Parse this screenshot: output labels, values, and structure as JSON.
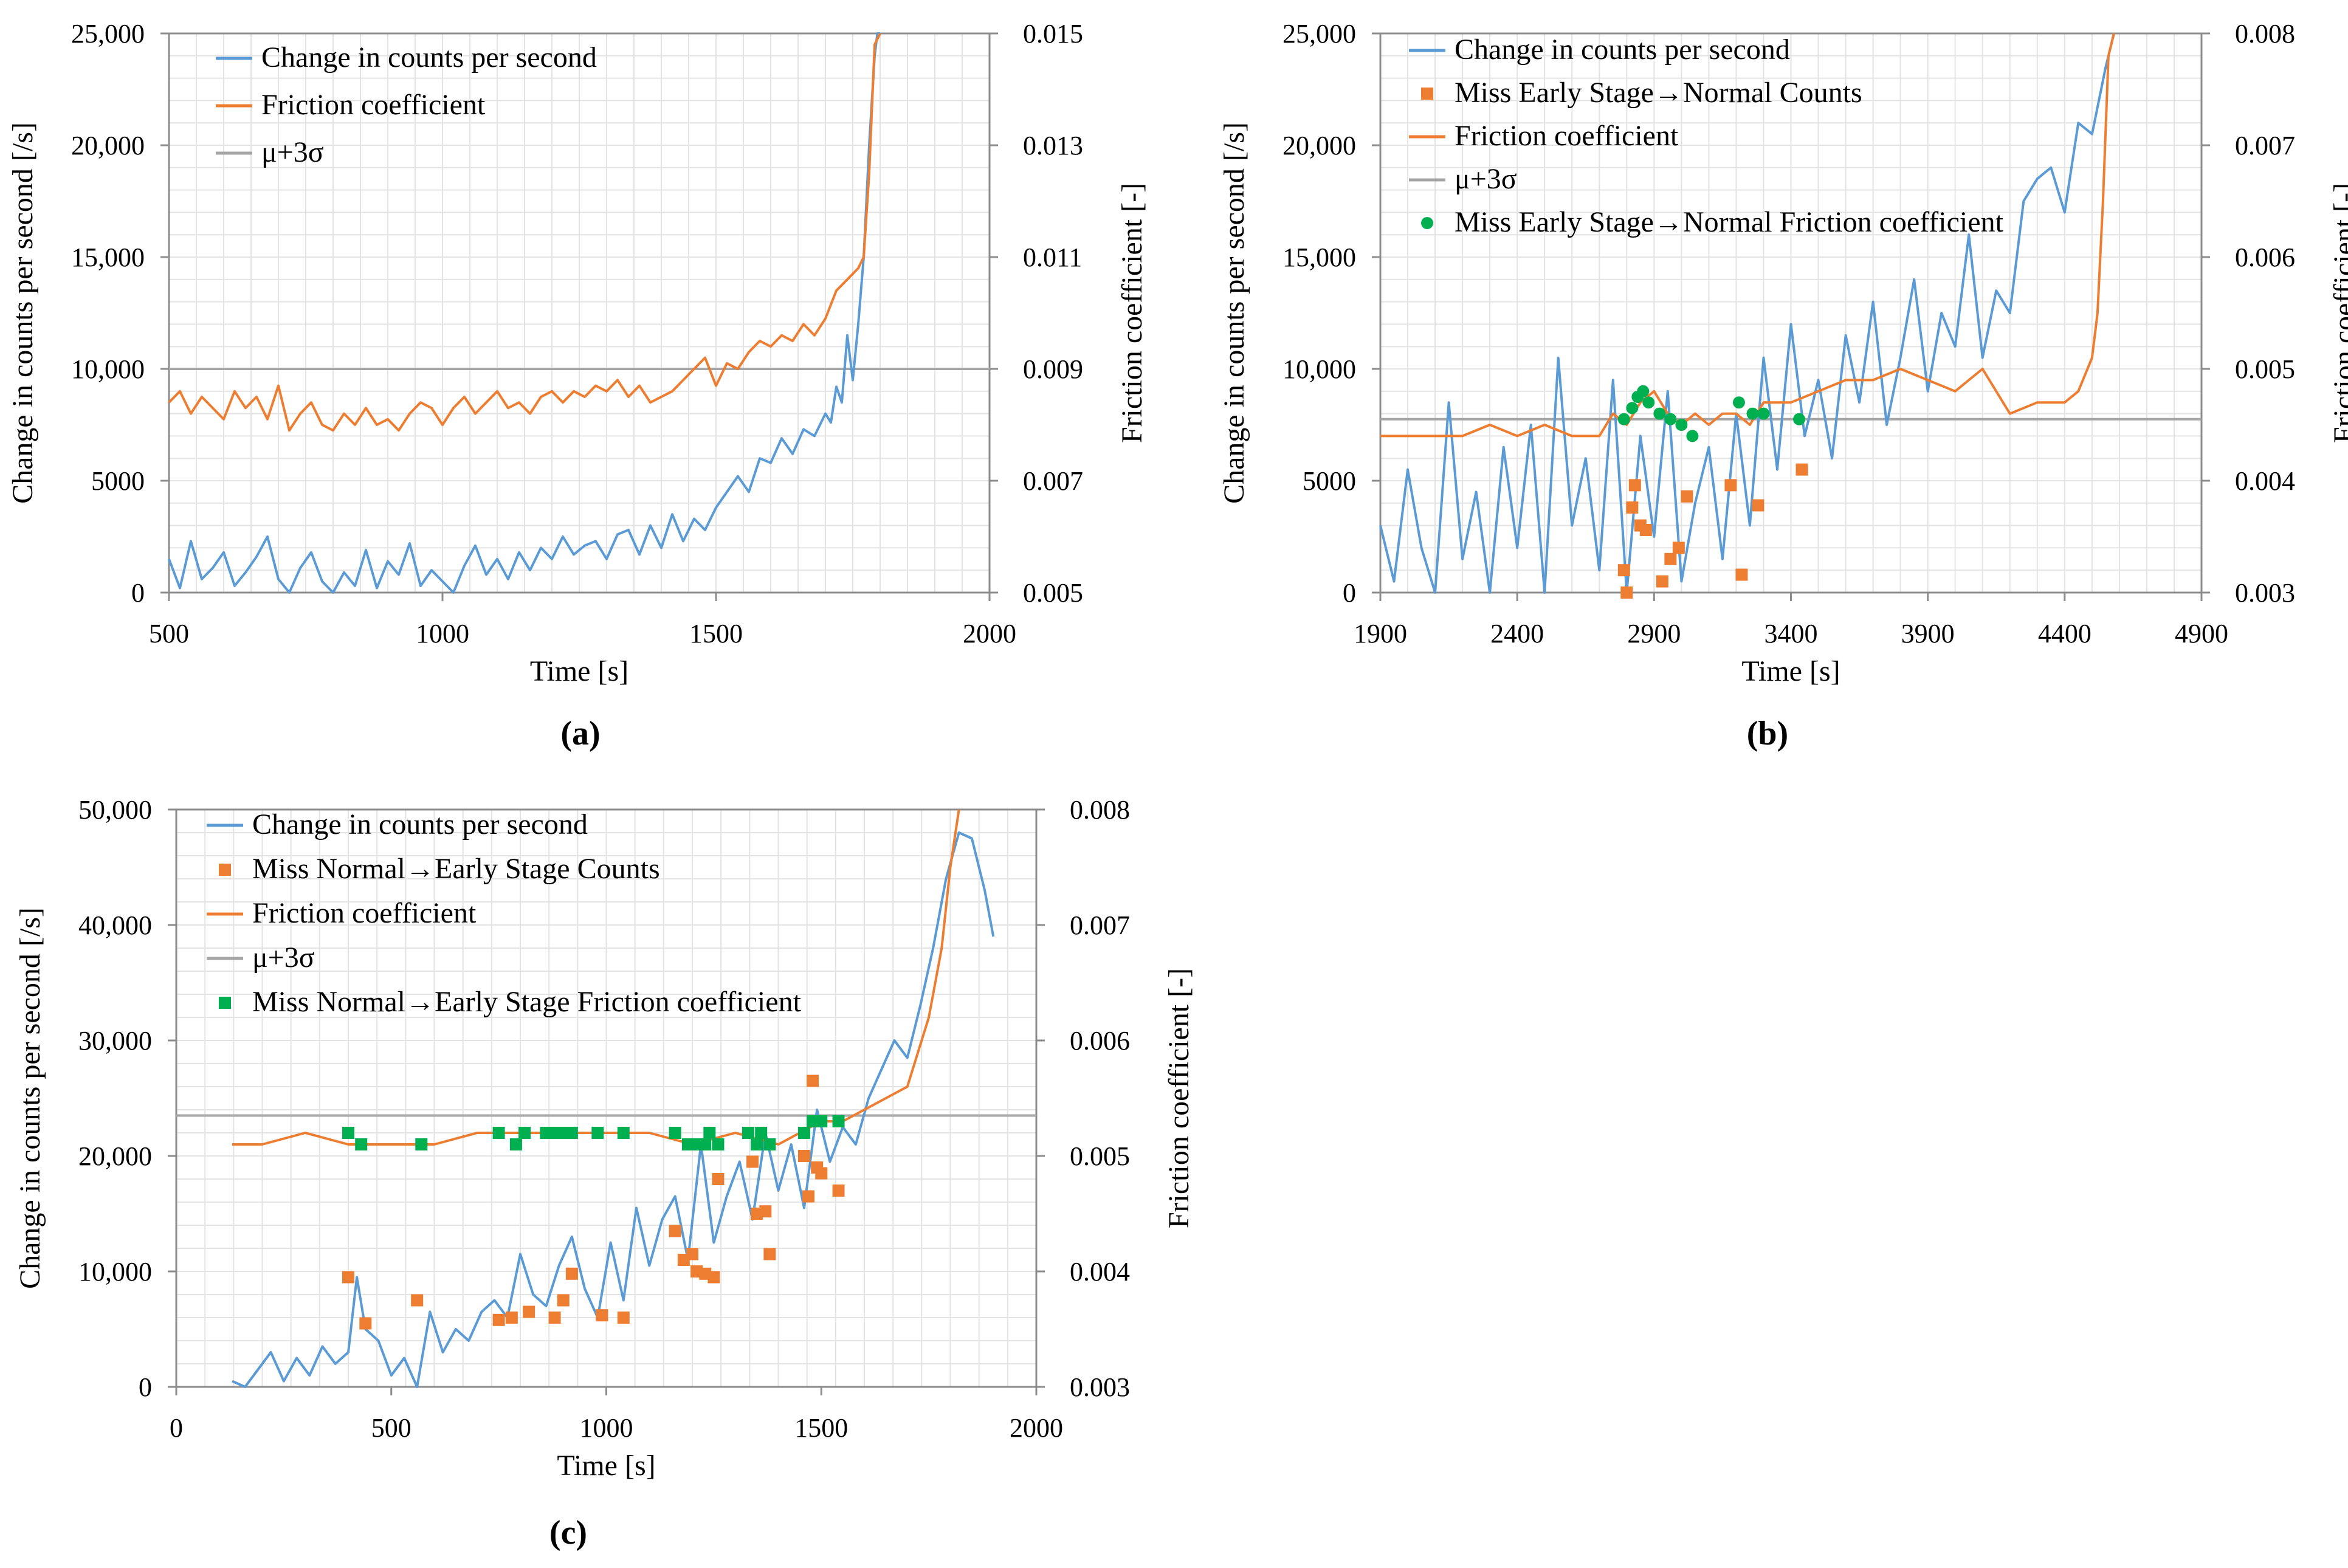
{
  "figure": {
    "panel_labels": [
      "(a)",
      "(b)",
      "(c)"
    ]
  },
  "chart_data": [
    {
      "panel": "(a)",
      "type": "line",
      "xlabel": "Time [s]",
      "ylabel": "Change in counts per second  [/s]",
      "y2label": "Friction coefficient  [-]",
      "xlim": [
        500,
        2000
      ],
      "ylim": [
        0,
        25000
      ],
      "y2lim": [
        0.005,
        0.015
      ],
      "x_ticks": [
        "500",
        "1000",
        "1500",
        "2000"
      ],
      "y_ticks": [
        "0",
        "5000",
        "10,000",
        "15,000",
        "20,000",
        "25,000"
      ],
      "y2_ticks": [
        "0.005",
        "0.007",
        "0.009",
        "0.011",
        "0.013",
        "0.015"
      ],
      "legend": [
        "Change in counts per second",
        "Friction coefficient",
        "μ+3σ"
      ],
      "threshold": 0.009,
      "series": [
        {
          "name": "Change in counts per second",
          "axis": "left",
          "color": "#5b9bd5",
          "x": [
            500,
            520,
            540,
            560,
            580,
            600,
            620,
            640,
            660,
            680,
            700,
            720,
            740,
            760,
            780,
            800,
            820,
            840,
            860,
            880,
            900,
            920,
            940,
            960,
            980,
            1000,
            1020,
            1040,
            1060,
            1080,
            1100,
            1120,
            1140,
            1160,
            1180,
            1200,
            1220,
            1240,
            1260,
            1280,
            1300,
            1320,
            1340,
            1360,
            1380,
            1400,
            1420,
            1440,
            1460,
            1480,
            1500,
            1520,
            1540,
            1560,
            1580,
            1600,
            1620,
            1640,
            1660,
            1680,
            1700,
            1710,
            1720,
            1730,
            1740,
            1750,
            1760,
            1770,
            1780,
            1785,
            1790,
            1795,
            1800
          ],
          "y": [
            1500,
            200,
            2300,
            600,
            1100,
            1800,
            300,
            900,
            1600,
            2500,
            600,
            0,
            1100,
            1800,
            500,
            0,
            900,
            300,
            1900,
            200,
            1400,
            800,
            2200,
            300,
            1000,
            500,
            0,
            1200,
            2100,
            800,
            1500,
            600,
            1800,
            1000,
            2000,
            1500,
            2500,
            1700,
            2100,
            2300,
            1500,
            2600,
            2800,
            1700,
            3000,
            2000,
            3500,
            2300,
            3300,
            2800,
            3800,
            4500,
            5200,
            4500,
            6000,
            5800,
            6900,
            6200,
            7300,
            7000,
            8000,
            7600,
            9200,
            8500,
            11500,
            9500,
            12000,
            15000,
            20000,
            22000,
            24000,
            25000,
            25000
          ]
        },
        {
          "name": "Friction coefficient",
          "axis": "right",
          "color": "#ed7d31",
          "x": [
            500,
            520,
            540,
            560,
            580,
            600,
            620,
            640,
            660,
            680,
            700,
            720,
            740,
            760,
            780,
            800,
            820,
            840,
            860,
            880,
            900,
            920,
            940,
            960,
            980,
            1000,
            1020,
            1040,
            1060,
            1080,
            1100,
            1120,
            1140,
            1160,
            1180,
            1200,
            1220,
            1240,
            1260,
            1280,
            1300,
            1320,
            1340,
            1360,
            1380,
            1400,
            1420,
            1440,
            1460,
            1480,
            1500,
            1520,
            1540,
            1560,
            1580,
            1600,
            1620,
            1640,
            1660,
            1680,
            1700,
            1720,
            1740,
            1760,
            1770,
            1780,
            1790,
            1800
          ],
          "y": [
            0.0084,
            0.0086,
            0.0082,
            0.0085,
            0.0083,
            0.0081,
            0.0086,
            0.0083,
            0.0085,
            0.0081,
            0.0087,
            0.0079,
            0.0082,
            0.0084,
            0.008,
            0.0079,
            0.0082,
            0.008,
            0.0083,
            0.008,
            0.0081,
            0.0079,
            0.0082,
            0.0084,
            0.0083,
            0.008,
            0.0083,
            0.0085,
            0.0082,
            0.0084,
            0.0086,
            0.0083,
            0.0084,
            0.0082,
            0.0085,
            0.0086,
            0.0084,
            0.0086,
            0.0085,
            0.0087,
            0.0086,
            0.0088,
            0.0085,
            0.0087,
            0.0084,
            0.0085,
            0.0086,
            0.0088,
            0.009,
            0.0092,
            0.0087,
            0.0091,
            0.009,
            0.0093,
            0.0095,
            0.0094,
            0.0096,
            0.0095,
            0.0098,
            0.0096,
            0.0099,
            0.0104,
            0.0106,
            0.0108,
            0.011,
            0.0125,
            0.0148,
            0.015
          ]
        }
      ]
    },
    {
      "panel": "(b)",
      "type": "line",
      "xlabel": "Time [s]",
      "ylabel": "Change in counts per second  [/s]",
      "y2label": "Friction coefficient  [-]",
      "xlim": [
        1900,
        4900
      ],
      "ylim": [
        0,
        25000
      ],
      "y2lim": [
        0.003,
        0.008
      ],
      "x_ticks": [
        "1900",
        "2400",
        "2900",
        "3400",
        "3900",
        "4400",
        "4900"
      ],
      "y_ticks": [
        "0",
        "5000",
        "10,000",
        "15,000",
        "20,000",
        "25,000"
      ],
      "y2_ticks": [
        "0.003",
        "0.004",
        "0.005",
        "0.006",
        "0.007",
        "0.008"
      ],
      "legend": [
        "Change in counts per second",
        "Miss Early Stage→Normal Counts",
        "Friction coefficient",
        "μ+3σ",
        "Miss Early Stage→Normal Friction coefficient"
      ],
      "threshold": 0.00455,
      "series": [
        {
          "name": "Change in counts per second",
          "axis": "left",
          "color": "#5b9bd5",
          "x": [
            1900,
            1950,
            2000,
            2050,
            2100,
            2150,
            2200,
            2250,
            2300,
            2350,
            2400,
            2450,
            2500,
            2550,
            2600,
            2650,
            2700,
            2750,
            2800,
            2850,
            2900,
            2950,
            3000,
            3050,
            3100,
            3150,
            3200,
            3250,
            3300,
            3350,
            3400,
            3450,
            3500,
            3550,
            3600,
            3650,
            3700,
            3750,
            3800,
            3850,
            3900,
            3950,
            4000,
            4050,
            4100,
            4150,
            4200,
            4250,
            4300,
            4350,
            4400,
            4450,
            4500,
            4550,
            4580
          ],
          "y": [
            3000,
            500,
            5500,
            2000,
            0,
            8500,
            1500,
            4500,
            0,
            6500,
            2000,
            7500,
            0,
            10500,
            3000,
            6000,
            1000,
            9500,
            0,
            7000,
            2500,
            9000,
            500,
            4000,
            6500,
            1500,
            8000,
            3000,
            10500,
            5500,
            12000,
            7000,
            9500,
            6000,
            11500,
            8500,
            13000,
            7500,
            10500,
            14000,
            9000,
            12500,
            11000,
            16000,
            10500,
            13500,
            12500,
            17500,
            18500,
            19000,
            17000,
            21000,
            20500,
            23500,
            25000
          ]
        },
        {
          "name": "Friction coefficient",
          "axis": "right",
          "color": "#ed7d31",
          "x": [
            1900,
            2000,
            2100,
            2200,
            2300,
            2400,
            2500,
            2600,
            2700,
            2750,
            2800,
            2850,
            2900,
            2950,
            3000,
            3050,
            3100,
            3150,
            3200,
            3250,
            3300,
            3400,
            3500,
            3600,
            3700,
            3800,
            3900,
            4000,
            4100,
            4200,
            4300,
            4400,
            4450,
            4500,
            4520,
            4540,
            4560,
            4580
          ],
          "y": [
            0.0044,
            0.0044,
            0.0044,
            0.0044,
            0.0045,
            0.0044,
            0.0045,
            0.0044,
            0.0044,
            0.0046,
            0.0045,
            0.0047,
            0.0048,
            0.0046,
            0.0045,
            0.0046,
            0.0045,
            0.0046,
            0.0046,
            0.0045,
            0.0047,
            0.0047,
            0.0048,
            0.0049,
            0.0049,
            0.005,
            0.0049,
            0.0048,
            0.005,
            0.0046,
            0.0047,
            0.0047,
            0.0048,
            0.0051,
            0.0055,
            0.0065,
            0.0078,
            0.008
          ]
        },
        {
          "name": "Miss Early Stage→Normal Counts",
          "axis": "left",
          "type": "scatter",
          "color": "#ed7d31",
          "x": [
            2790,
            2800,
            2820,
            2830,
            2850,
            2870,
            2930,
            2960,
            2990,
            3020,
            3180,
            3220,
            3280,
            3440
          ],
          "y": [
            1000,
            0,
            3800,
            4800,
            3000,
            2800,
            500,
            1500,
            2000,
            4300,
            4800,
            800,
            3900,
            5500
          ]
        },
        {
          "name": "Miss Early Stage→Normal Friction coefficient",
          "axis": "right",
          "type": "scatter",
          "color": "#00b050",
          "x": [
            2790,
            2820,
            2840,
            2860,
            2880,
            2920,
            2960,
            3000,
            3040,
            3210,
            3260,
            3300,
            3430
          ],
          "y": [
            0.00455,
            0.00465,
            0.00475,
            0.0048,
            0.0047,
            0.0046,
            0.00455,
            0.0045,
            0.0044,
            0.0047,
            0.0046,
            0.0046,
            0.00455
          ]
        }
      ]
    },
    {
      "panel": "(c)",
      "type": "line",
      "xlabel": "Time [s]",
      "ylabel": "Change in counts per second  [/s]",
      "y2label": "Friction coefficient  [-]",
      "xlim": [
        0,
        2000
      ],
      "ylim": [
        0,
        50000
      ],
      "y2lim": [
        0.003,
        0.008
      ],
      "x_ticks": [
        "0",
        "500",
        "1000",
        "1500",
        "2000"
      ],
      "y_ticks": [
        "0",
        "10,000",
        "20,000",
        "30,000",
        "40,000",
        "50,000"
      ],
      "y2_ticks": [
        "0.003",
        "0.004",
        "0.005",
        "0.006",
        "0.007",
        "0.008"
      ],
      "legend": [
        "Change in counts per second",
        "Miss Normal→Early Stage Counts",
        "Friction coefficient",
        "μ+3σ",
        "Miss Normal→Early Stage Friction coefficient"
      ],
      "threshold": 0.00535,
      "series": [
        {
          "name": "Change in counts per second",
          "axis": "left",
          "color": "#5b9bd5",
          "x": [
            130,
            160,
            190,
            220,
            250,
            280,
            310,
            340,
            370,
            400,
            420,
            440,
            470,
            500,
            530,
            560,
            590,
            620,
            650,
            680,
            710,
            740,
            770,
            800,
            830,
            860,
            890,
            920,
            950,
            980,
            1010,
            1040,
            1070,
            1100,
            1130,
            1160,
            1190,
            1220,
            1250,
            1280,
            1310,
            1340,
            1370,
            1400,
            1430,
            1460,
            1490,
            1520,
            1550,
            1580,
            1610,
            1640,
            1670,
            1700,
            1730,
            1760,
            1790,
            1820,
            1850,
            1880,
            1900
          ],
          "y": [
            500,
            0,
            1500,
            3000,
            500,
            2500,
            1000,
            3500,
            2000,
            3000,
            9500,
            5000,
            4000,
            1000,
            2500,
            0,
            6500,
            3000,
            5000,
            4000,
            6500,
            7500,
            6000,
            11500,
            8000,
            7000,
            10500,
            13000,
            8500,
            6000,
            12500,
            7500,
            15500,
            10500,
            14500,
            16500,
            11000,
            21000,
            12500,
            16500,
            19500,
            14500,
            22000,
            17000,
            21000,
            15500,
            24000,
            19500,
            22500,
            21000,
            25000,
            27500,
            30000,
            28500,
            33000,
            38000,
            44000,
            48000,
            47500,
            43000,
            39000
          ]
        },
        {
          "name": "Friction coefficient",
          "axis": "right",
          "color": "#ed7d31",
          "x": [
            130,
            200,
            300,
            400,
            500,
            600,
            700,
            800,
            900,
            1000,
            1100,
            1200,
            1300,
            1400,
            1450,
            1500,
            1550,
            1600,
            1650,
            1700,
            1750,
            1780,
            1800,
            1820
          ],
          "y": [
            0.0051,
            0.0051,
            0.0052,
            0.0051,
            0.0051,
            0.0051,
            0.0052,
            0.0052,
            0.0052,
            0.0052,
            0.0052,
            0.0051,
            0.0052,
            0.0051,
            0.0052,
            0.0053,
            0.0053,
            0.0054,
            0.0055,
            0.0056,
            0.0062,
            0.0068,
            0.0075,
            0.008
          ]
        },
        {
          "name": "Miss Normal→Early Stage Counts",
          "axis": "left",
          "type": "scatter",
          "color": "#ed7d31",
          "x": [
            400,
            440,
            560,
            750,
            780,
            820,
            880,
            900,
            920,
            990,
            1040,
            1160,
            1180,
            1200,
            1210,
            1230,
            1250,
            1260,
            1340,
            1350,
            1370,
            1380,
            1460,
            1470,
            1480,
            1490,
            1500,
            1540
          ],
          "y": [
            9500,
            5500,
            7500,
            5800,
            6000,
            6500,
            6000,
            7500,
            9800,
            6200,
            6000,
            13500,
            11000,
            11500,
            10000,
            9800,
            9500,
            18000,
            19500,
            15000,
            15200,
            11500,
            20000,
            16500,
            26500,
            19000,
            18500,
            17000
          ]
        },
        {
          "name": "Miss Normal→Early Stage Friction coefficient",
          "axis": "right",
          "type": "scatter",
          "color": "#00b050",
          "x": [
            400,
            430,
            570,
            750,
            790,
            810,
            860,
            880,
            900,
            920,
            980,
            1040,
            1160,
            1190,
            1210,
            1230,
            1240,
            1260,
            1330,
            1350,
            1360,
            1380,
            1460,
            1480,
            1500,
            1540
          ],
          "y": [
            0.0052,
            0.0051,
            0.0051,
            0.0052,
            0.0051,
            0.0052,
            0.0052,
            0.0052,
            0.0052,
            0.0052,
            0.0052,
            0.0052,
            0.0052,
            0.0051,
            0.0051,
            0.0051,
            0.0052,
            0.0051,
            0.0052,
            0.0051,
            0.0052,
            0.0051,
            0.0052,
            0.0053,
            0.0053,
            0.0053
          ]
        }
      ]
    }
  ]
}
